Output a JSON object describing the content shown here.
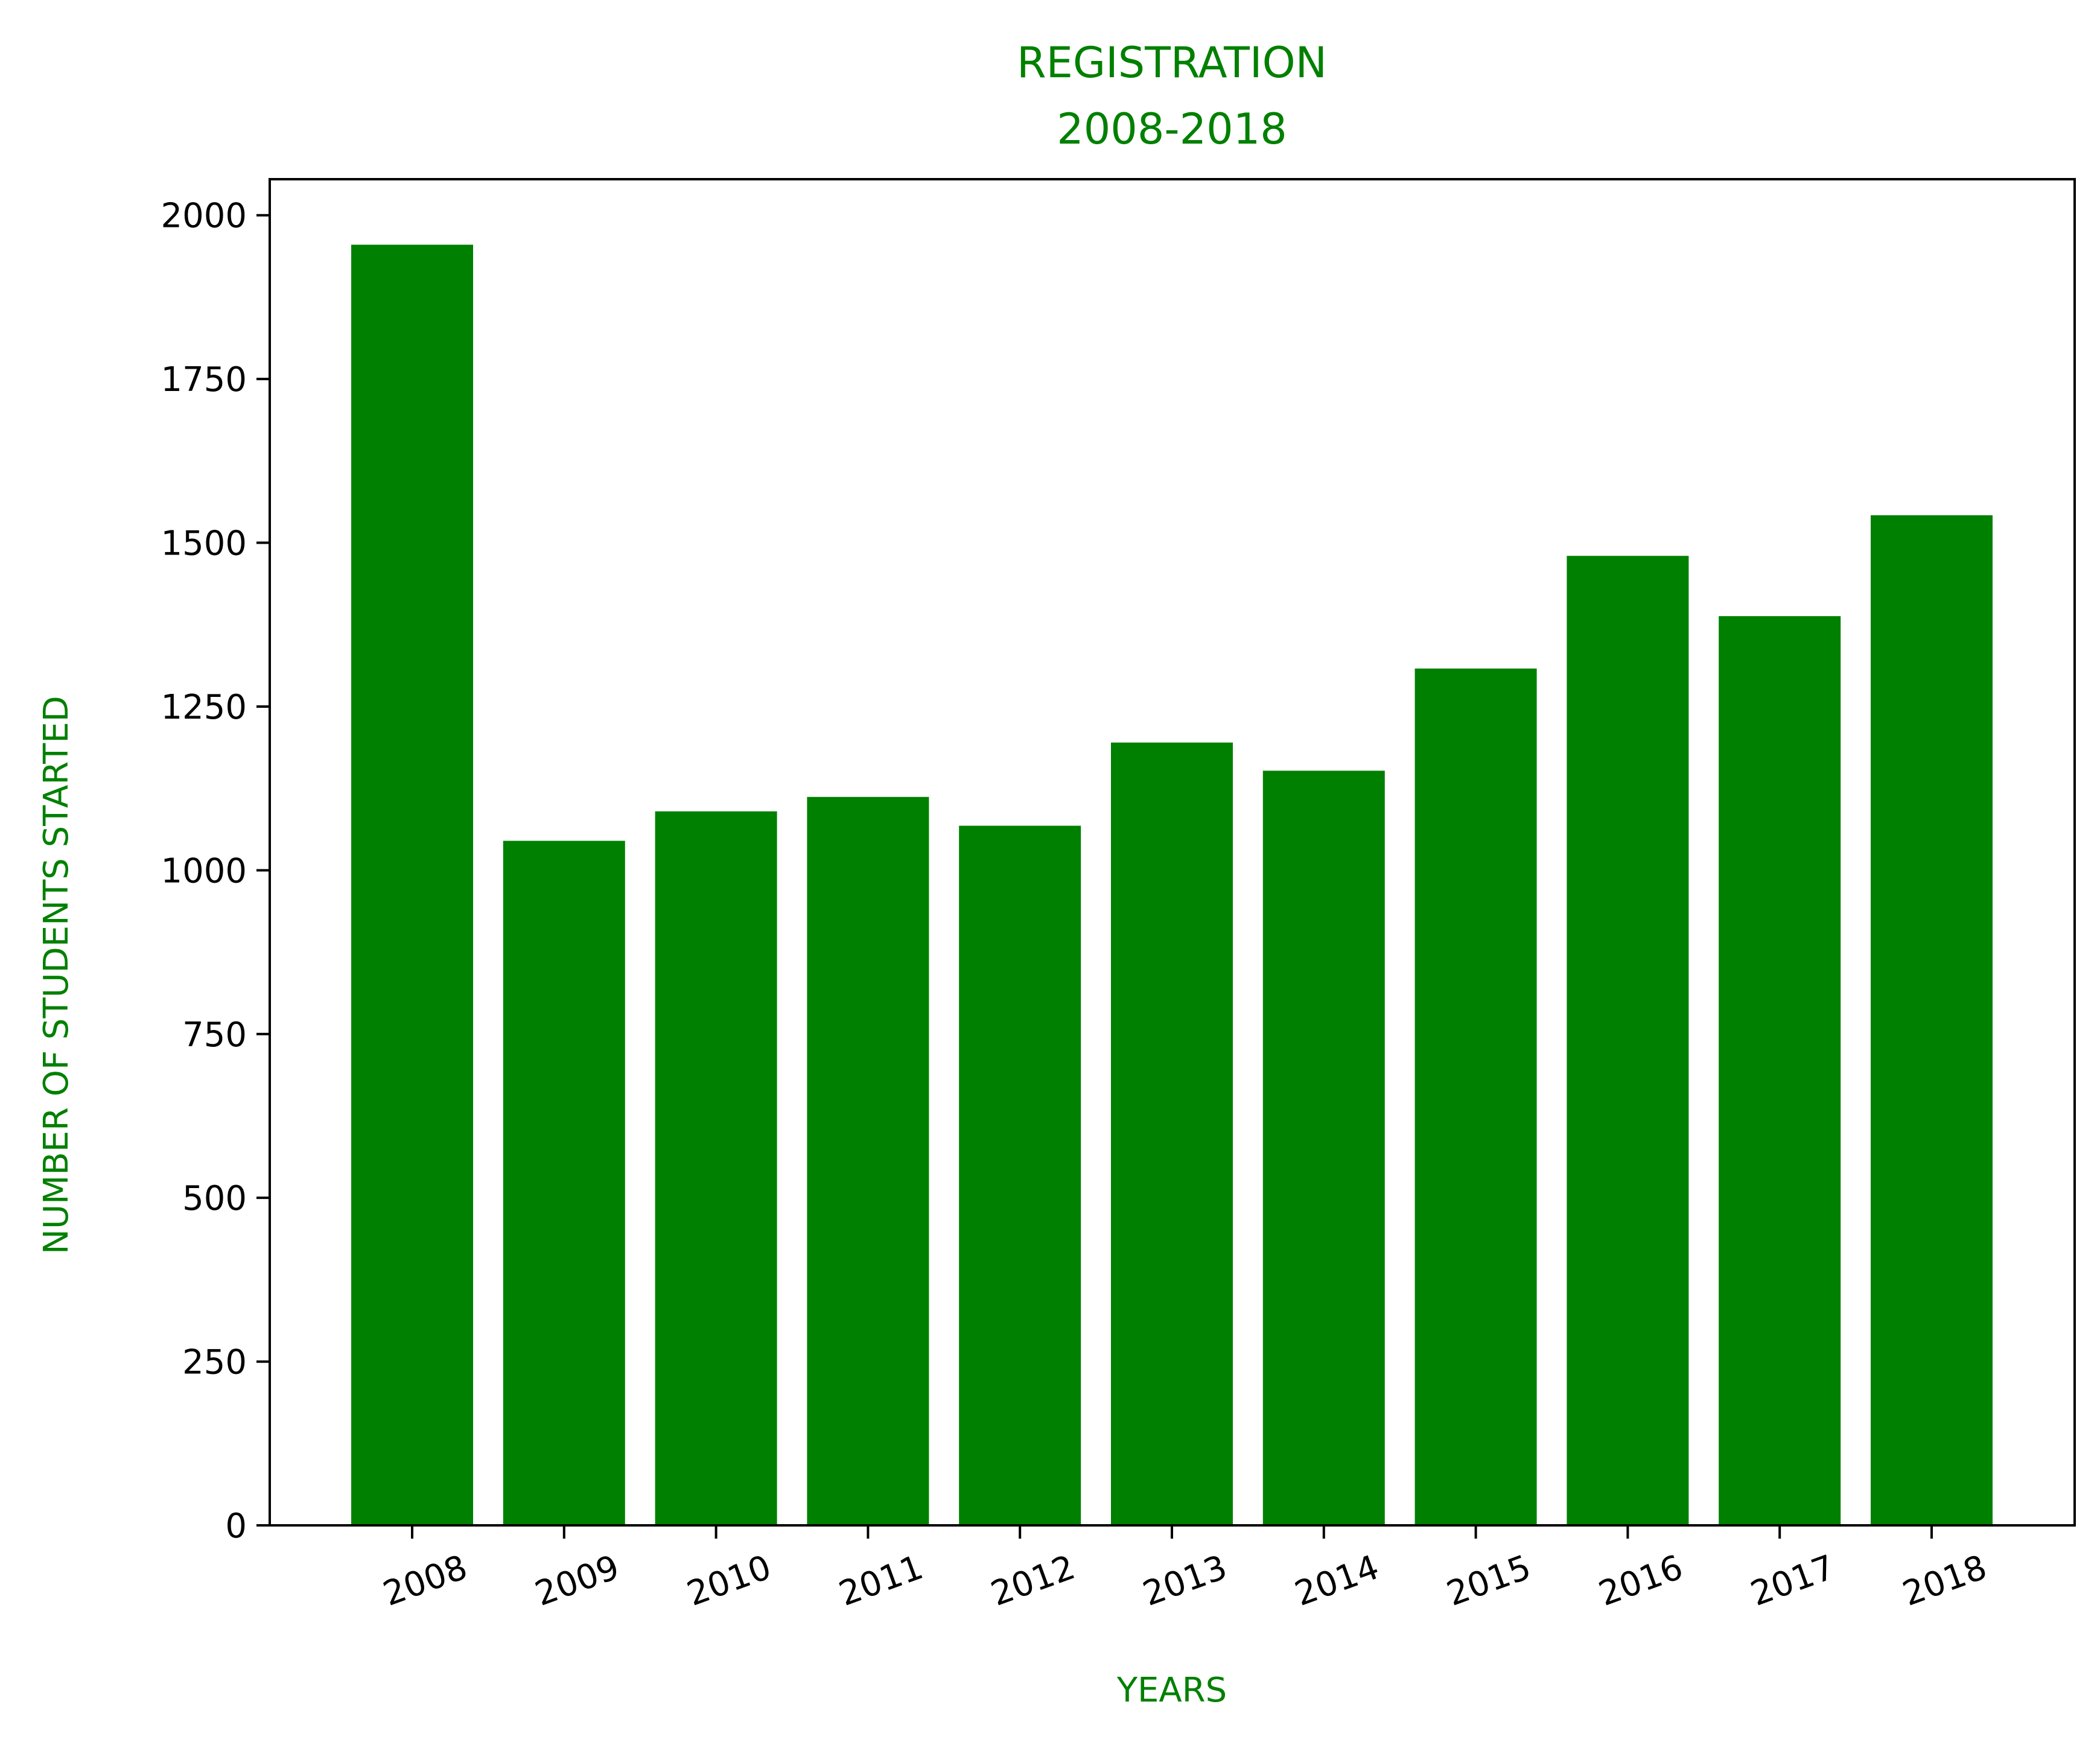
{
  "chart_data": {
    "type": "bar",
    "title_lines": [
      "REGISTRATION",
      "2008-2018"
    ],
    "xlabel": "YEARS",
    "ylabel": "NUMBER OF STUDENTS STARTED",
    "categories": [
      "2008",
      "2009",
      "2010",
      "2011",
      "2012",
      "2013",
      "2014",
      "2015",
      "2016",
      "2017",
      "2018"
    ],
    "values": [
      1955,
      1045,
      1090,
      1112,
      1068,
      1195,
      1152,
      1308,
      1480,
      1388,
      1542
    ],
    "ylim": [
      0,
      2055
    ],
    "yticks": [
      0,
      250,
      500,
      750,
      1000,
      1250,
      1500,
      1750,
      2000
    ],
    "grid": false,
    "legend": "none",
    "colors": {
      "bar": "#008000",
      "title": "#008000",
      "axis_label": "#008000",
      "ticks": "#000000"
    }
  }
}
